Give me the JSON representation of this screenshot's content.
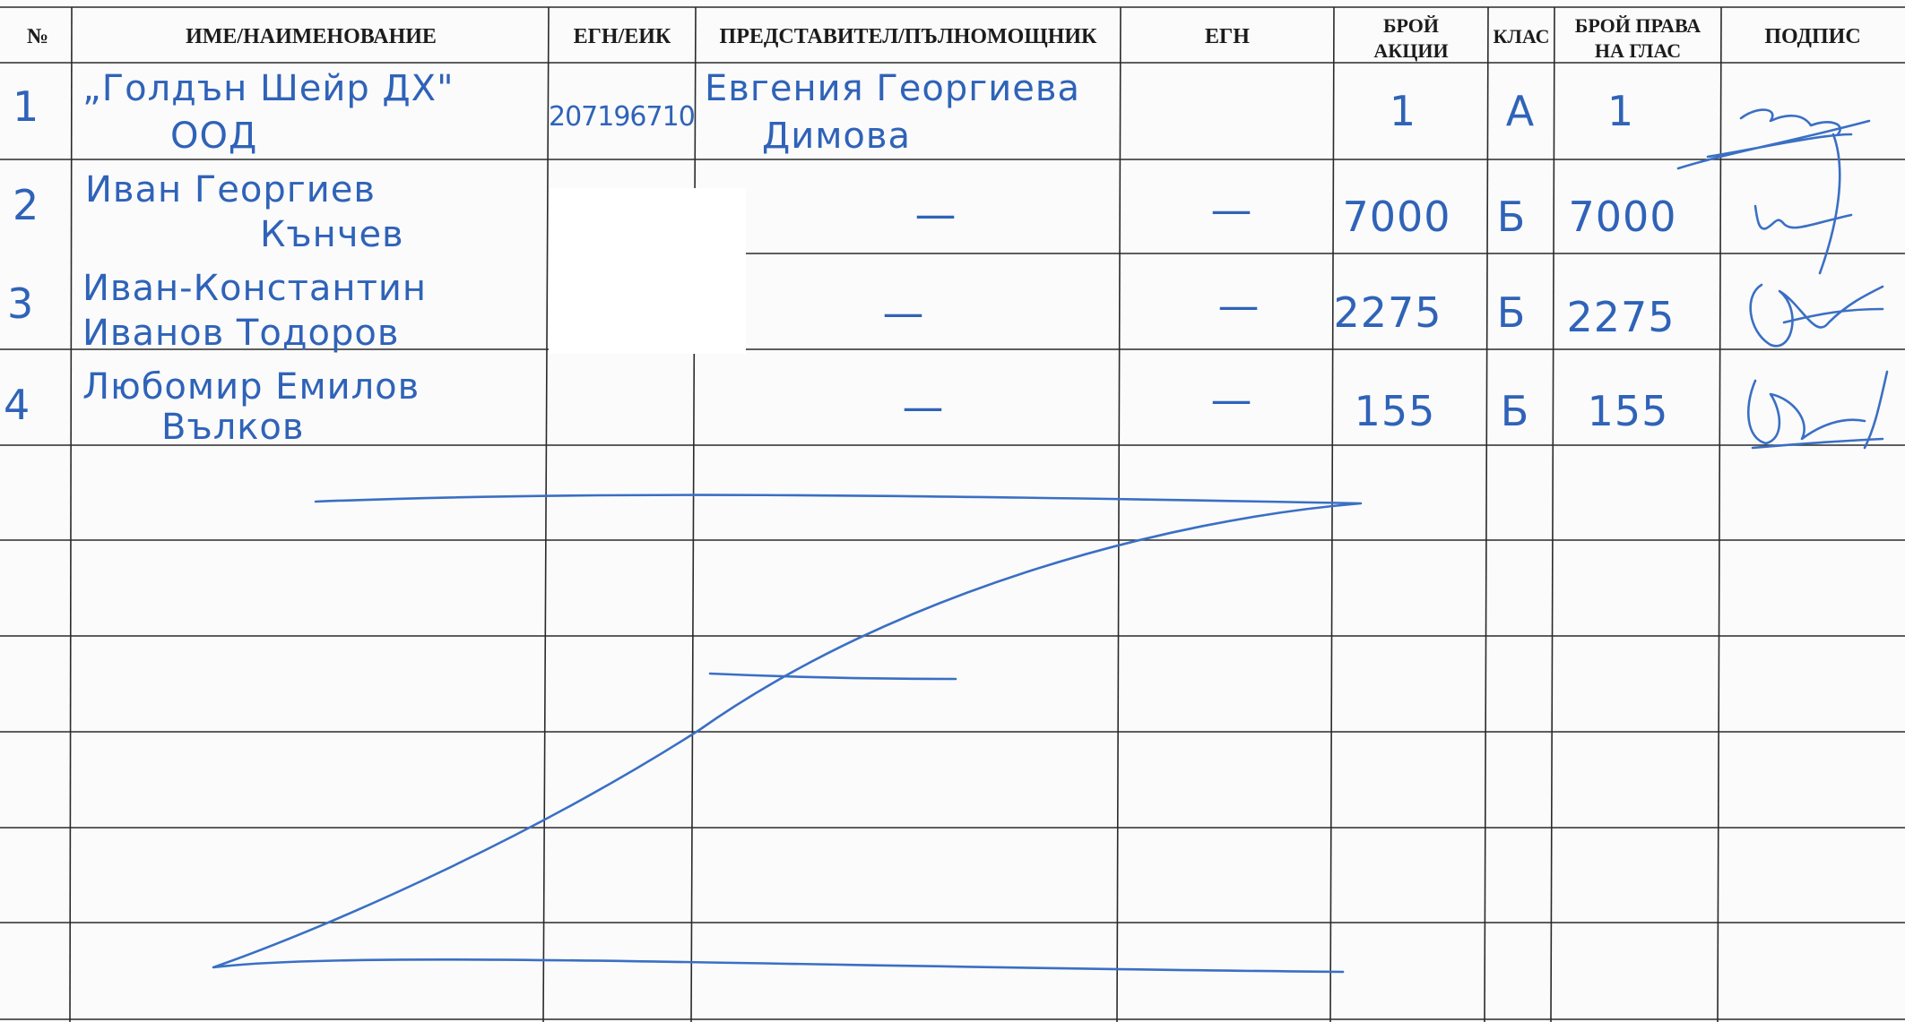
{
  "headers": {
    "no": "№",
    "name": "ИМЕ/НАИМЕНОВАНИЕ",
    "egn_eik": "ЕГН/ЕИК",
    "representative": "ПРЕДСТАВИТЕЛ/ПЪЛНОМОЩНИК",
    "egn": "ЕГН",
    "shares_line1": "БРОЙ",
    "shares_line2": "АКЦИИ",
    "class": "КЛАС",
    "votes_line1": "БРОЙ ПРАВА",
    "votes_line2": "НА ГЛАС",
    "signature": "ПОДПИС"
  },
  "rows": [
    {
      "no": "1",
      "name_line1": "„Голдън Шейр ДХ\"",
      "name_line2": "ООД",
      "egn_eik": "207196710",
      "representative_line1": "Евгения Георгиева",
      "representative_line2": "Димова",
      "egn": "",
      "shares": "1",
      "class": "А",
      "votes": "1"
    },
    {
      "no": "2",
      "name_line1": "Иван Георгиев",
      "name_line2": "Кънчев",
      "egn_eik": "",
      "representative_line1": "—",
      "representative_line2": "",
      "egn": "—",
      "shares": "7000",
      "class": "Б",
      "votes": "7000"
    },
    {
      "no": "3",
      "name_line1": "Иван-Константин",
      "name_line2": "Иванов Тодоров",
      "egn_eik": "",
      "representative_line1": "—",
      "representative_line2": "",
      "egn": "—",
      "shares": "2275",
      "class": "Б",
      "votes": "2275"
    },
    {
      "no": "4",
      "name_line1": "Любомир Емилов",
      "name_line2": "Вълков",
      "egn_eik": "",
      "representative_line1": "—",
      "representative_line2": "",
      "egn": "—",
      "shares": "155",
      "class": "Б",
      "votes": "155"
    }
  ],
  "colors": {
    "ink": "#2f63b8",
    "grid": "#2a2a2a",
    "paper": "#fbfbfb"
  }
}
